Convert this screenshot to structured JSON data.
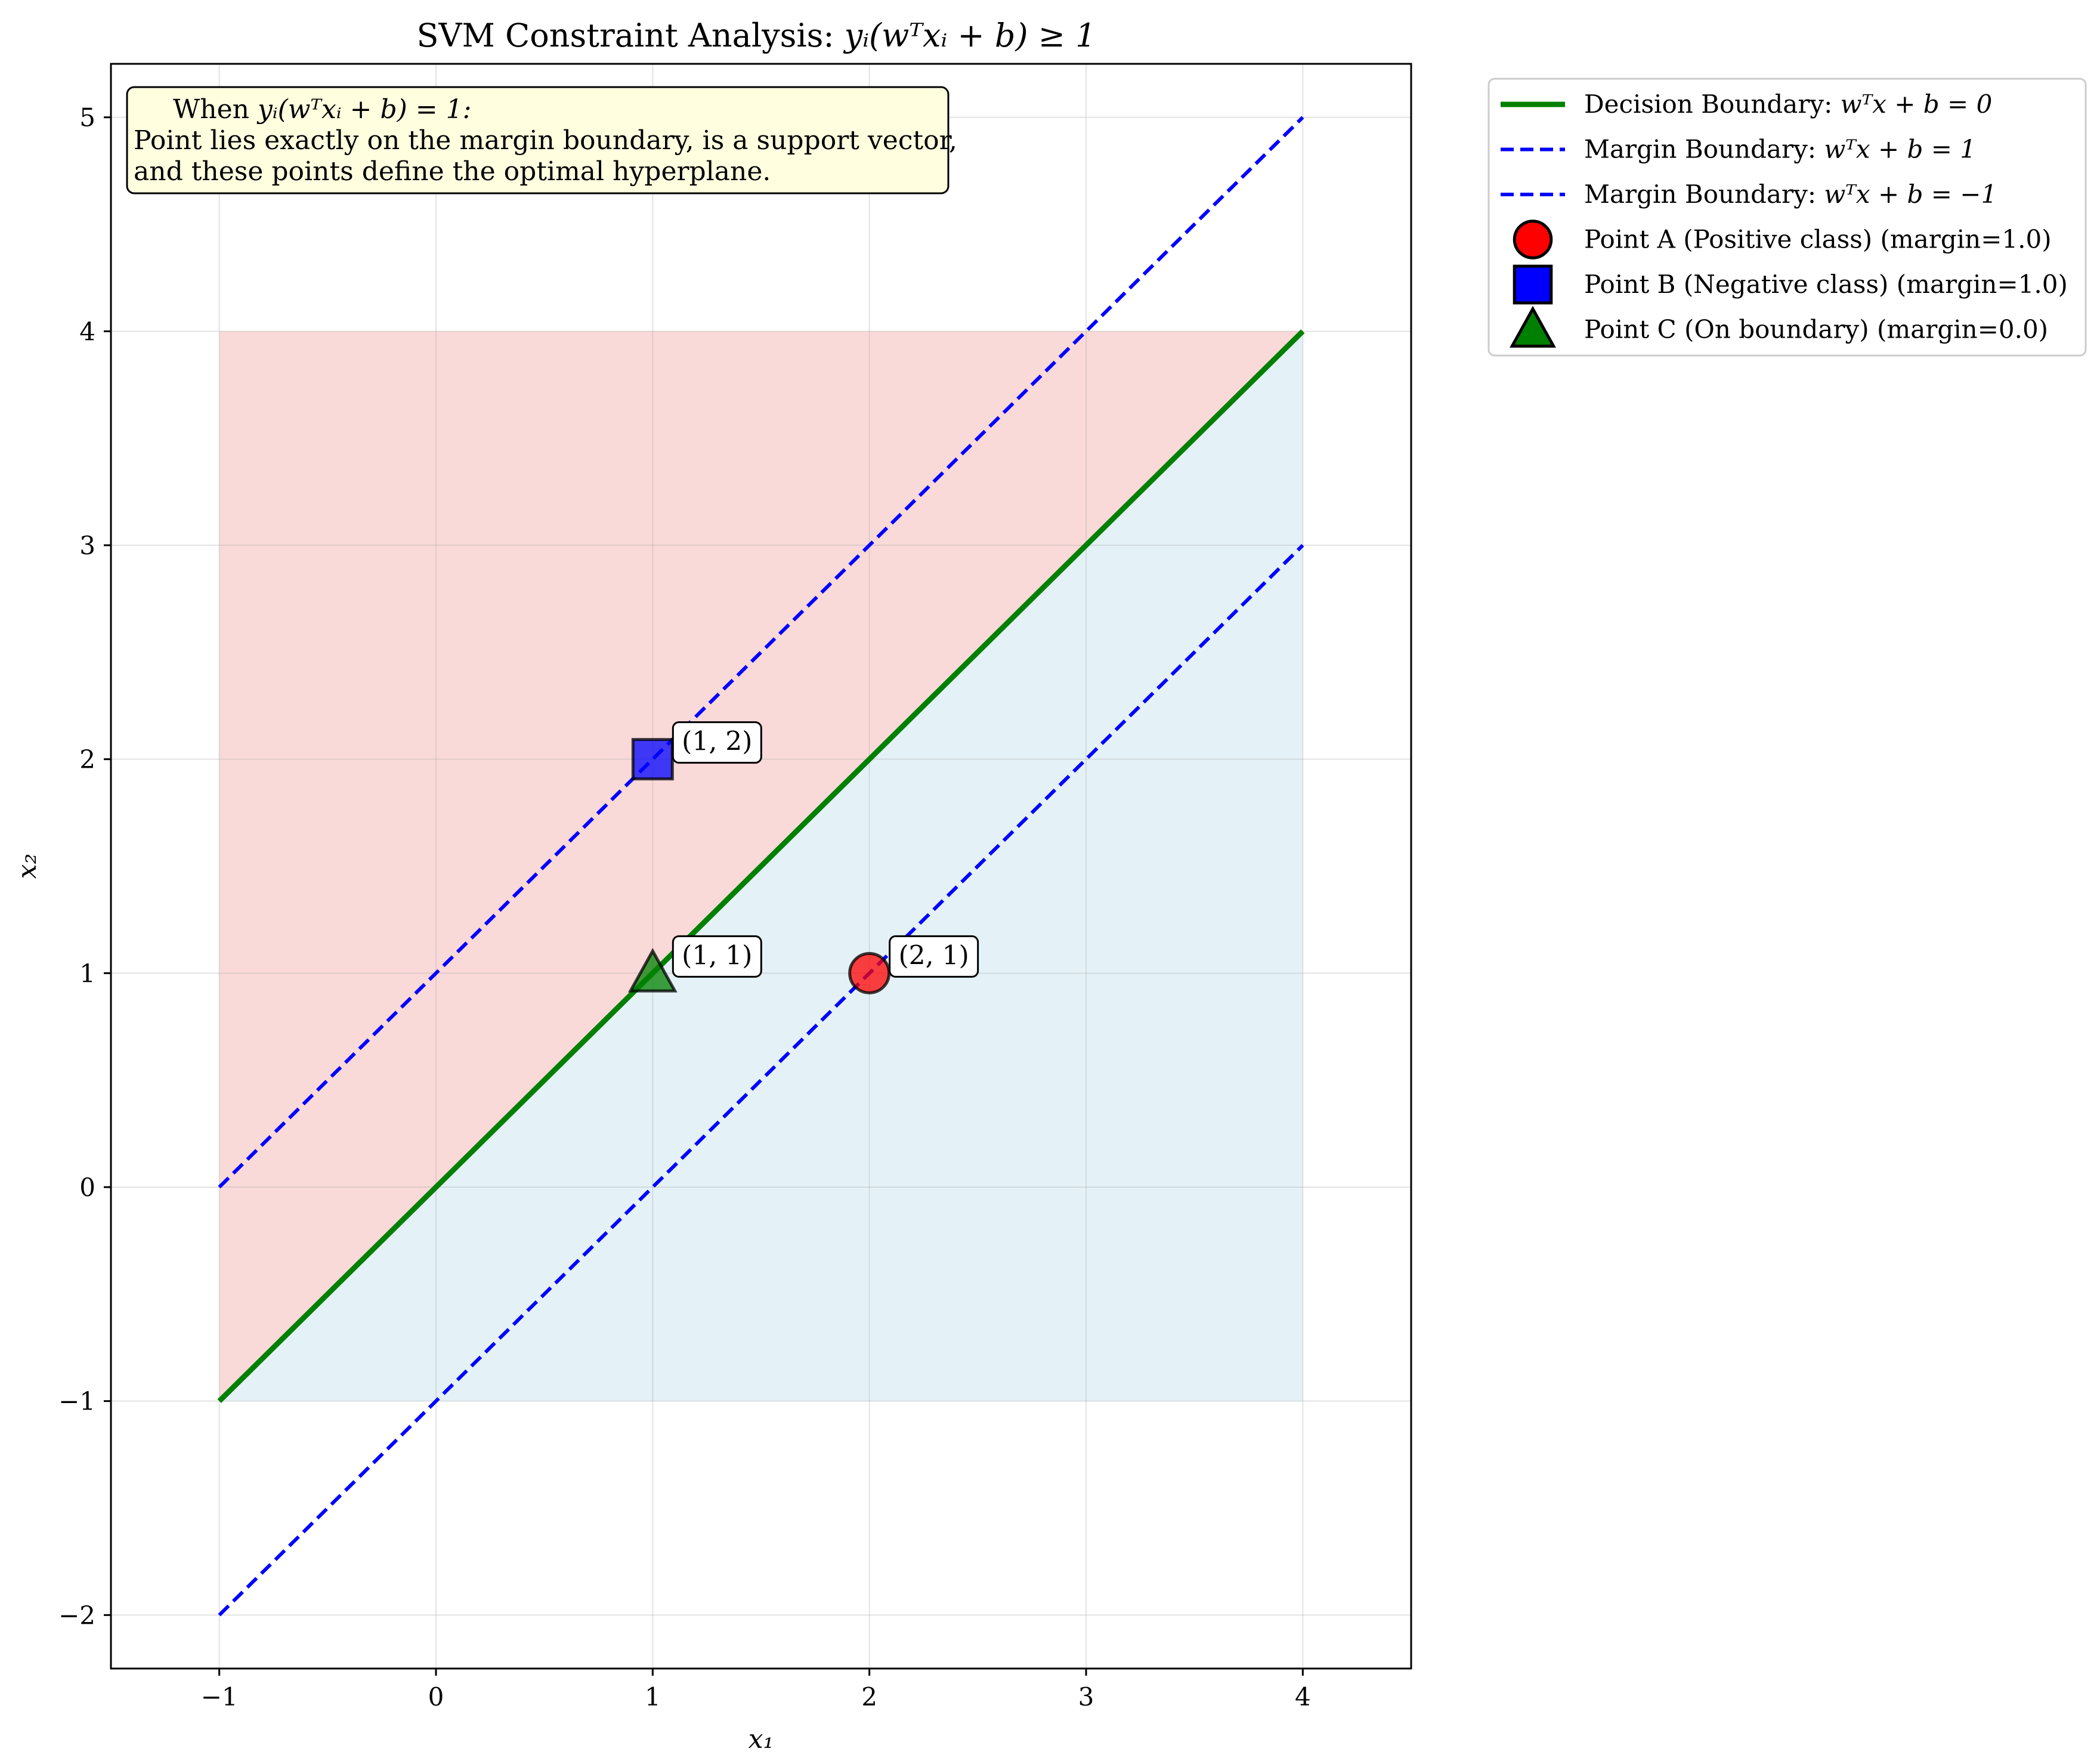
{
  "chart_data": {
    "type": "line",
    "title_prefix": "SVM Constraint Analysis: ",
    "title_math": "yᵢ(wᵀxᵢ + b) ≥ 1",
    "xlabel": "x₁",
    "ylabel": "x₂",
    "xlim": [
      -1.5,
      4.5
    ],
    "ylim": [
      -2.25,
      5.25
    ],
    "xticks": [
      -1,
      0,
      1,
      2,
      3,
      4
    ],
    "yticks": [
      -2,
      -1,
      0,
      1,
      2,
      3,
      4,
      5
    ],
    "xtick_labels": [
      "−1",
      "0",
      "1",
      "2",
      "3",
      "4"
    ],
    "ytick_labels": [
      "−2",
      "−1",
      "0",
      "1",
      "2",
      "3",
      "4",
      "5"
    ],
    "grid": true,
    "regions": [
      {
        "name": "positive-region",
        "polygon": [
          [
            -1,
            -1
          ],
          [
            4,
            4
          ],
          [
            -1,
            4
          ]
        ],
        "color": "#f08080",
        "alpha": 0.3
      },
      {
        "name": "negative-region",
        "polygon": [
          [
            -1,
            -1
          ],
          [
            4,
            4
          ],
          [
            4,
            -1
          ]
        ],
        "color": "#add8e6",
        "alpha": 0.33
      }
    ],
    "series": [
      {
        "name": "Decision Boundary: wᵀx + b = 0",
        "legend_math": "wᵀx + b = 0",
        "legend_prefix": "Decision Boundary: ",
        "x": [
          -1,
          4
        ],
        "y": [
          -1,
          4
        ],
        "color": "#008000",
        "style": "solid"
      },
      {
        "name": "Margin Boundary: wᵀx + b = 1",
        "legend_math": "wᵀx + b = 1",
        "legend_prefix": "Margin Boundary: ",
        "x": [
          -1,
          4
        ],
        "y": [
          0,
          5
        ],
        "color": "#0000ff",
        "style": "dashed"
      },
      {
        "name": "Margin Boundary: wᵀx + b = −1",
        "legend_math": "wᵀx + b = −1",
        "legend_prefix": "Margin Boundary: ",
        "x": [
          -1,
          4
        ],
        "y": [
          -2,
          3
        ],
        "color": "#0000ff",
        "style": "dashed"
      }
    ],
    "points": [
      {
        "name": "Point A (Positive class) (margin=1.0)",
        "x": 2,
        "y": 1,
        "marker": "circle",
        "color": "#ff0000",
        "label": "(2, 1)"
      },
      {
        "name": "Point B (Negative class) (margin=1.0)",
        "x": 1,
        "y": 2,
        "marker": "square",
        "color": "#0000ff",
        "label": "(1, 2)"
      },
      {
        "name": "Point C (On boundary) (margin=0.0)",
        "x": 1,
        "y": 1,
        "marker": "triangle",
        "color": "#008000",
        "label": "(1, 1)"
      }
    ],
    "info_box": {
      "line1_prefix": "When ",
      "line1_math": "yᵢ(wᵀxᵢ + b) = 1:",
      "line2": "Point lies exactly on the margin boundary, is a support vector,",
      "line3": "and these points define the optimal hyperplane."
    },
    "legend_position": "outside-upper-right"
  }
}
